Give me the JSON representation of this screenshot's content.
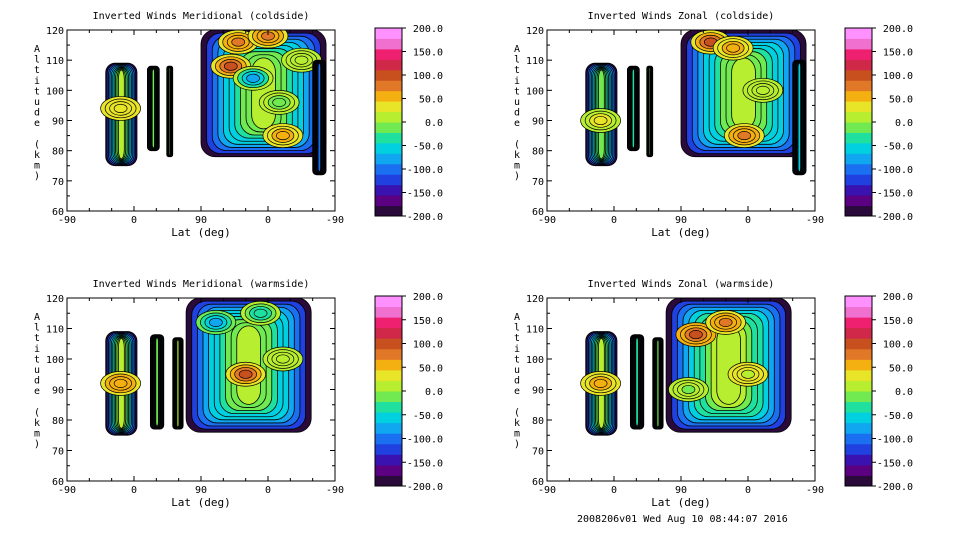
{
  "chart_data": [
    {
      "type": "contour",
      "title": "Inverted Winds Meridional (coldside)",
      "xlabel": "Lat (deg)",
      "ylabel": "Altitude (km)",
      "x_ticks": [
        "-90",
        "0",
        "90",
        "0",
        "-90"
      ],
      "y_ticks": [
        "60",
        "70",
        "80",
        "90",
        "100",
        "110",
        "120"
      ],
      "ylim": [
        60,
        120
      ],
      "blobs": [
        {
          "x": [
            -38,
            4
          ],
          "y": [
            75,
            109
          ],
          "v": 20,
          "hot": [
            {
              "x": -18,
              "y": 94,
              "v": 40
            }
          ]
        },
        {
          "x": [
            18,
            34
          ],
          "y": [
            80,
            108
          ],
          "v": 10
        },
        {
          "x": 48,
          "y": [
            78,
            108
          ],
          "v": 0
        },
        {
          "x": [
            90,
            258
          ],
          "y": [
            78,
            120
          ],
          "v": 25,
          "hot": [
            {
              "x": 130,
              "y": 108,
              "v": 90
            },
            {
              "x": 140,
              "y": 116,
              "v": 70
            },
            {
              "x": 160,
              "y": 104,
              "v": -70
            },
            {
              "x": 180,
              "y": 118,
              "v": 80
            },
            {
              "x": 195,
              "y": 96,
              "v": -20
            },
            {
              "x": 200,
              "y": 85,
              "v": 60
            },
            {
              "x": 225,
              "y": 110,
              "v": 0
            }
          ]
        },
        {
          "x": [
            240,
            258
          ],
          "y": [
            72,
            110
          ],
          "v": -100
        }
      ]
    },
    {
      "type": "contour",
      "title": "Inverted Winds Zonal (coldside)",
      "xlabel": "Lat (deg)",
      "ylabel": "Altitude (km)",
      "x_ticks": [
        "-90",
        "0",
        "90",
        "0",
        "-90"
      ],
      "y_ticks": [
        "60",
        "70",
        "80",
        "90",
        "100",
        "110",
        "120"
      ],
      "ylim": [
        60,
        120
      ],
      "blobs": [
        {
          "x": [
            -38,
            4
          ],
          "y": [
            75,
            109
          ],
          "v": 10,
          "hot": [
            {
              "x": -18,
              "y": 90,
              "v": 30
            }
          ]
        },
        {
          "x": [
            18,
            34
          ],
          "y": [
            80,
            108
          ],
          "v": -20
        },
        {
          "x": 48,
          "y": [
            78,
            108
          ],
          "v": 0
        },
        {
          "x": [
            90,
            258
          ],
          "y": [
            78,
            120
          ],
          "v": 25,
          "hot": [
            {
              "x": 130,
              "y": 116,
              "v": 90
            },
            {
              "x": 160,
              "y": 114,
              "v": 60
            },
            {
              "x": 200,
              "y": 100,
              "v": 0
            },
            {
              "x": 175,
              "y": 85,
              "v": 80
            }
          ]
        },
        {
          "x": [
            240,
            258
          ],
          "y": [
            72,
            110
          ],
          "v": -50
        }
      ]
    },
    {
      "type": "contour",
      "title": "Inverted Winds Meridional (warmside)",
      "xlabel": "Lat (deg)",
      "ylabel": "Altitude (km)",
      "x_ticks": [
        "-90",
        "0",
        "90",
        "0",
        "-90"
      ],
      "y_ticks": [
        "60",
        "70",
        "80",
        "90",
        "100",
        "110",
        "120"
      ],
      "ylim": [
        60,
        120
      ],
      "blobs": [
        {
          "x": [
            -38,
            4
          ],
          "y": [
            75,
            109
          ],
          "v": 30,
          "hot": [
            {
              "x": -18,
              "y": 92,
              "v": 60
            }
          ]
        },
        {
          "x": [
            22,
            40
          ],
          "y": [
            77,
            108
          ],
          "v": 10
        },
        {
          "x": [
            52,
            66
          ],
          "y": [
            77,
            107
          ],
          "v": 25
        },
        {
          "x": [
            70,
            238
          ],
          "y": [
            76,
            120
          ],
          "v": 20,
          "hot": [
            {
              "x": 110,
              "y": 112,
              "v": -80
            },
            {
              "x": 170,
              "y": 115,
              "v": -40
            },
            {
              "x": 150,
              "y": 95,
              "v": 90
            },
            {
              "x": 200,
              "y": 100,
              "v": 20
            }
          ]
        }
      ]
    },
    {
      "type": "contour",
      "title": "Inverted Winds Zonal (warmside)",
      "xlabel": "Lat (deg)",
      "ylabel": "Altitude (km)",
      "x_ticks": [
        "-90",
        "0",
        "90",
        "0",
        "-90"
      ],
      "y_ticks": [
        "60",
        "70",
        "80",
        "90",
        "100",
        "110",
        "120"
      ],
      "ylim": [
        60,
        120
      ],
      "blobs": [
        {
          "x": [
            -38,
            4
          ],
          "y": [
            75,
            109
          ],
          "v": 20,
          "hot": [
            {
              "x": -18,
              "y": 92,
              "v": 60
            }
          ]
        },
        {
          "x": [
            22,
            40
          ],
          "y": [
            77,
            108
          ],
          "v": -20
        },
        {
          "x": [
            52,
            66
          ],
          "y": [
            77,
            107
          ],
          "v": 10
        },
        {
          "x": [
            70,
            238
          ],
          "y": [
            76,
            120
          ],
          "v": 30,
          "hot": [
            {
              "x": 110,
              "y": 108,
              "v": 90
            },
            {
              "x": 150,
              "y": 112,
              "v": 70
            },
            {
              "x": 100,
              "y": 90,
              "v": -10
            },
            {
              "x": 180,
              "y": 95,
              "v": 20
            }
          ]
        }
      ]
    }
  ],
  "colorbar": {
    "min": -200,
    "max": 200,
    "step": 25,
    "tick_labels": [
      "200.0",
      "150.0",
      "100.0",
      "50.0",
      "0.0",
      "-50.0",
      "-100.0",
      "-150.0",
      "-200.0"
    ],
    "colors": [
      "#2a0a3a",
      "#5a0080",
      "#3a12b0",
      "#2040e0",
      "#1a70f0",
      "#10a6f0",
      "#00d0e0",
      "#20e0a0",
      "#70ea50",
      "#b8ee30",
      "#e8e428",
      "#f4b010",
      "#e07828",
      "#c8501e",
      "#d02848",
      "#f02070",
      "#f070d0",
      "#ff90ff"
    ]
  },
  "footer": "2008206v01 Wed Aug 10 08:44:07 2016"
}
